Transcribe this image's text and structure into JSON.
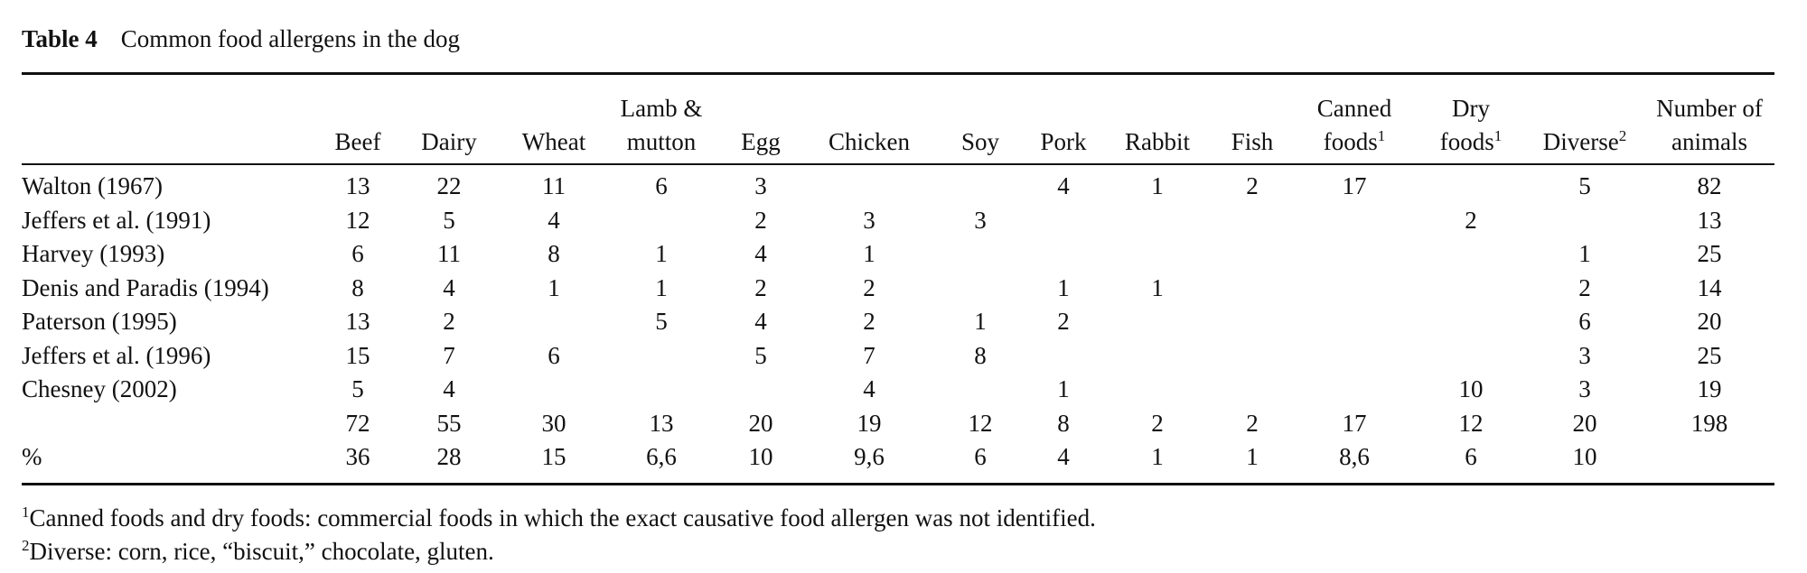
{
  "table": {
    "label": "Table 4",
    "title": "Common food allergens in the dog",
    "columns": [
      {
        "lines": [
          ""
        ],
        "sup": ""
      },
      {
        "lines": [
          "Beef"
        ],
        "sup": ""
      },
      {
        "lines": [
          "Dairy"
        ],
        "sup": ""
      },
      {
        "lines": [
          "Wheat"
        ],
        "sup": ""
      },
      {
        "lines": [
          "Lamb &",
          "mutton"
        ],
        "sup": ""
      },
      {
        "lines": [
          "Egg"
        ],
        "sup": ""
      },
      {
        "lines": [
          "Chicken"
        ],
        "sup": ""
      },
      {
        "lines": [
          "Soy"
        ],
        "sup": ""
      },
      {
        "lines": [
          "Pork"
        ],
        "sup": ""
      },
      {
        "lines": [
          "Rabbit"
        ],
        "sup": ""
      },
      {
        "lines": [
          "Fish"
        ],
        "sup": ""
      },
      {
        "lines": [
          "Canned",
          "foods"
        ],
        "sup": "1"
      },
      {
        "lines": [
          "Dry",
          "foods"
        ],
        "sup": "1"
      },
      {
        "lines": [
          "Diverse"
        ],
        "sup": "2"
      },
      {
        "lines": [
          "Number of",
          "animals"
        ],
        "sup": ""
      }
    ],
    "rows": [
      [
        "Walton (1967)",
        "13",
        "22",
        "11",
        "6",
        "3",
        "",
        "",
        "4",
        "1",
        "2",
        "17",
        "",
        "5",
        "82"
      ],
      [
        "Jeffers et al. (1991)",
        "12",
        "5",
        "4",
        "",
        "2",
        "3",
        "3",
        "",
        "",
        "",
        "",
        "2",
        "",
        "13"
      ],
      [
        "Harvey (1993)",
        "6",
        "11",
        "8",
        "1",
        "4",
        "1",
        "",
        "",
        "",
        "",
        "",
        "",
        "1",
        "25"
      ],
      [
        "Denis and Paradis (1994)",
        "8",
        "4",
        "1",
        "1",
        "2",
        "2",
        "",
        "1",
        "1",
        "",
        "",
        "",
        "2",
        "14"
      ],
      [
        "Paterson (1995)",
        "13",
        "2",
        "",
        "5",
        "4",
        "2",
        "1",
        "2",
        "",
        "",
        "",
        "",
        "6",
        "20"
      ],
      [
        "Jeffers et al. (1996)",
        "15",
        "7",
        "6",
        "",
        "5",
        "7",
        "8",
        "",
        "",
        "",
        "",
        "",
        "3",
        "25"
      ],
      [
        "Chesney (2002)",
        "5",
        "4",
        "",
        "",
        "",
        "4",
        "",
        "1",
        "",
        "",
        "",
        "10",
        "3",
        "19"
      ],
      [
        "",
        "72",
        "55",
        "30",
        "13",
        "20",
        "19",
        "12",
        "8",
        "2",
        "2",
        "17",
        "12",
        "20",
        "198"
      ],
      [
        "%",
        "36",
        "28",
        "15",
        "6,6",
        "10",
        "9,6",
        "6",
        "4",
        "1",
        "1",
        "8,6",
        "6",
        "10",
        ""
      ]
    ],
    "footnotes": [
      {
        "mark": "1",
        "text": "Canned foods and dry foods: commercial foods in which the exact causative food allergen was not identified."
      },
      {
        "mark": "2",
        "text": "Diverse: corn, rice, “biscuit,” chocolate, gluten."
      }
    ]
  }
}
